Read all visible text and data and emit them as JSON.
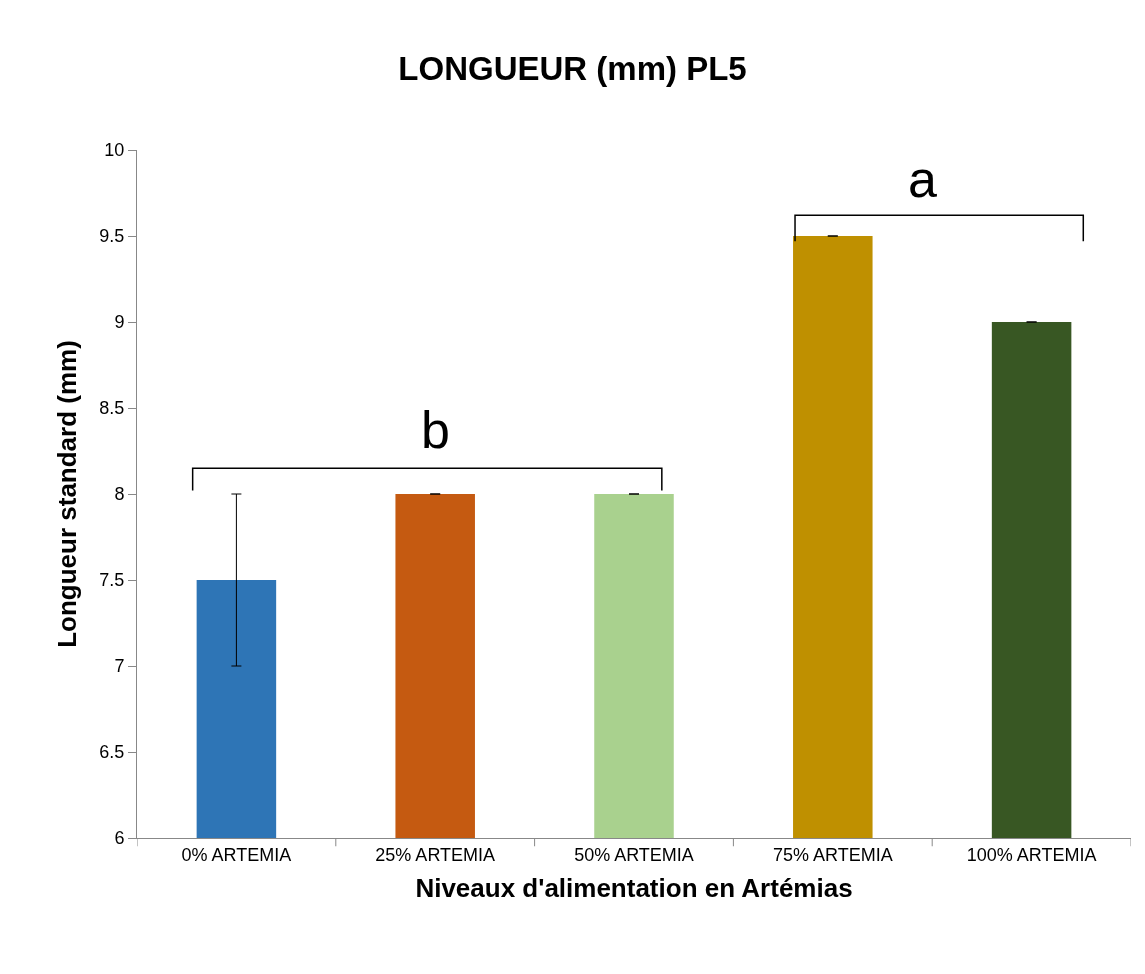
{
  "chart_data": {
    "type": "bar",
    "title": "LONGUEUR (mm) PL5",
    "xlabel": "Niveaux d'alimentation en Artémias",
    "ylabel": "Longueur standard (mm)",
    "categories": [
      "0% ARTEMIA",
      "25% ARTEMIA",
      "50% ARTEMIA",
      "75% ARTEMIA",
      "100% ARTEMIA"
    ],
    "values": [
      7.5,
      8,
      8,
      9.5,
      9
    ],
    "colors": [
      "#2e75b6",
      "#c55a11",
      "#a9d18e",
      "#bf9000",
      "#385723"
    ],
    "errors": [
      0.5,
      0,
      0,
      0,
      0
    ],
    "ylim": [
      6,
      10
    ],
    "yticks": [
      6,
      6.5,
      7,
      7.5,
      8,
      8.5,
      9,
      9.5,
      10
    ],
    "annotations": [
      "b",
      "a"
    ]
  }
}
